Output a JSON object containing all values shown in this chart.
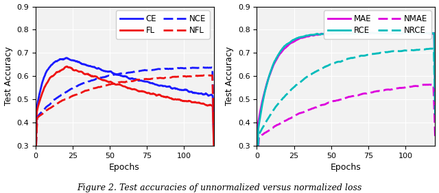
{
  "left_plot": {
    "ylabel": "Test Accuracy",
    "xlabel": "Epochs",
    "xlim": [
      0,
      120
    ],
    "ylim": [
      0.3,
      0.9
    ],
    "yticks": [
      0.3,
      0.4,
      0.5,
      0.6,
      0.7,
      0.8,
      0.9
    ],
    "xticks": [
      0,
      25,
      50,
      75,
      100
    ],
    "lines": {
      "CE": {
        "color": "#1a1aff",
        "linestyle": "solid",
        "lw": 2.0
      },
      "FL": {
        "color": "#ee1111",
        "linestyle": "solid",
        "lw": 2.0
      },
      "NCE": {
        "color": "#1a1aff",
        "linestyle": "dashed",
        "lw": 2.0
      },
      "NFL": {
        "color": "#ee1111",
        "linestyle": "dashed",
        "lw": 2.0
      }
    }
  },
  "right_plot": {
    "ylabel": "Test Accuracy",
    "xlabel": "Epochs",
    "xlim": [
      0,
      120
    ],
    "ylim": [
      0.3,
      0.9
    ],
    "yticks": [
      0.3,
      0.4,
      0.5,
      0.6,
      0.7,
      0.8,
      0.9
    ],
    "xticks": [
      0,
      25,
      50,
      75,
      100
    ],
    "lines": {
      "MAE": {
        "color": "#dd00dd",
        "linestyle": "solid",
        "lw": 2.0
      },
      "RCE": {
        "color": "#00bbbb",
        "linestyle": "solid",
        "lw": 2.0
      },
      "NMAE": {
        "color": "#dd00dd",
        "linestyle": "dashed",
        "lw": 2.0
      },
      "NRCE": {
        "color": "#00bbbb",
        "linestyle": "dashed",
        "lw": 2.0
      }
    }
  },
  "caption": "Figure 2. Test accuracies of unnormalized versus normalized loss",
  "background_color": "#f2f2f2",
  "grid_color": "#ffffff"
}
